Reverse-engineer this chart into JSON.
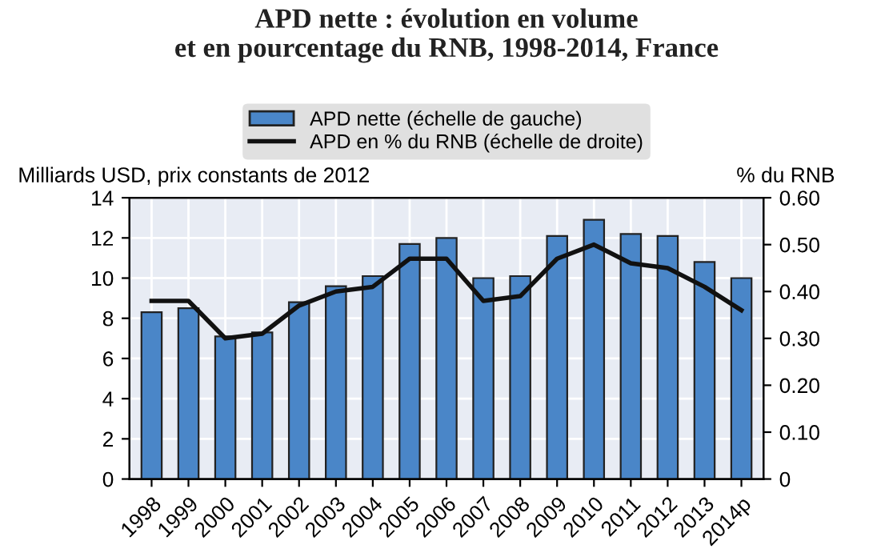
{
  "chart_data": {
    "type": "bar",
    "title": "APD nette : évolution en volume\net en pourcentage du RNB, 1998-2014, France",
    "categories": [
      "1998",
      "1999",
      "2000",
      "2001",
      "2002",
      "2003",
      "2004",
      "2005",
      "2006",
      "2007",
      "2008",
      "2009",
      "2010",
      "2011",
      "2012",
      "2013",
      "2014p"
    ],
    "series": [
      {
        "name": "APD nette (échelle de gauche)",
        "color": "#4a86c8",
        "values": [
          8.3,
          8.5,
          7.1,
          7.3,
          8.8,
          9.6,
          10.1,
          11.7,
          12.0,
          10.0,
          10.1,
          12.1,
          12.9,
          12.2,
          12.1,
          10.8,
          10.0
        ]
      },
      {
        "name": "APD en % du RNB (échelle de droite)",
        "type": "line",
        "axis": "y2",
        "color": "#111111",
        "values": [
          0.38,
          0.38,
          0.3,
          0.31,
          0.37,
          0.4,
          0.41,
          0.47,
          0.47,
          0.38,
          0.39,
          0.47,
          0.5,
          0.46,
          0.45,
          0.41,
          0.36
        ]
      }
    ],
    "ylabel": "Milliards USD, prix constants de 2012",
    "y2label": "% du RNB",
    "ylim": [
      0,
      14
    ],
    "yticks": [
      0,
      2,
      4,
      6,
      8,
      10,
      12,
      14
    ],
    "y2lim": [
      0,
      0.6
    ],
    "y2ticks": [
      {
        "value": 0,
        "label": "0"
      },
      {
        "value": 0.1,
        "label": "0.10"
      },
      {
        "value": 0.2,
        "label": "0.20"
      },
      {
        "value": 0.3,
        "label": "0.30"
      },
      {
        "value": 0.4,
        "label": "0.40"
      },
      {
        "value": 0.5,
        "label": "0.50"
      },
      {
        "value": 0.6,
        "label": "0.60"
      }
    ],
    "grid": true,
    "legend": "top",
    "line_style": "solid",
    "marker": "none"
  }
}
